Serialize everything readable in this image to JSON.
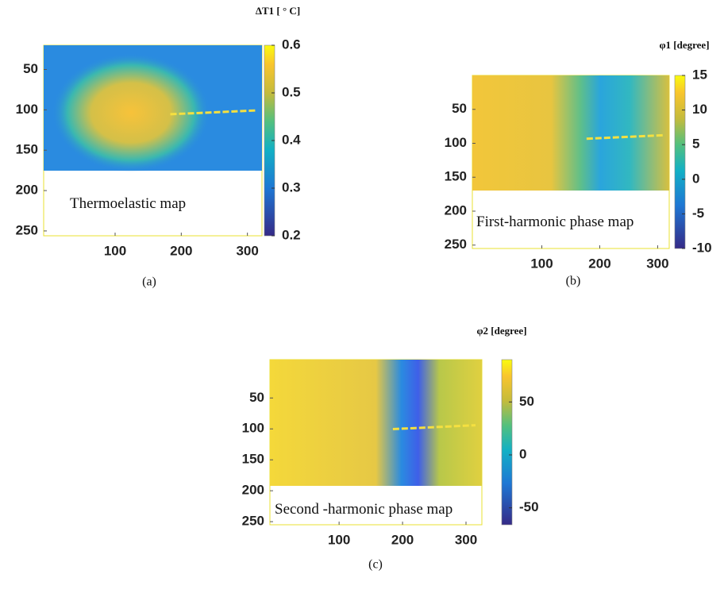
{
  "chart_data": [
    {
      "type": "heatmap",
      "title": "ΔT1 [ ° C]",
      "annotation": "Thermoelastic map",
      "caption": "(a)",
      "xlim": [
        -8,
        322
      ],
      "xticks": [
        100,
        200,
        300
      ],
      "ylim": [
        20,
        256
      ],
      "yticks": [
        50,
        100,
        150,
        200,
        250
      ],
      "clim": [
        0.2,
        0.6
      ],
      "cticks": [
        0.2,
        0.3,
        0.4,
        0.5,
        0.6
      ],
      "colormap": "parula"
    },
    {
      "type": "heatmap",
      "title": "φ1 [degree]",
      "annotation": "First-harmonic phase  map",
      "caption": "(b)",
      "xlim": [
        -20,
        320
      ],
      "xticks": [
        100,
        200,
        300
      ],
      "ylim": [
        0,
        255
      ],
      "yticks": [
        50,
        100,
        150,
        200,
        250
      ],
      "clim": [
        -10,
        15
      ],
      "cticks": [
        -10,
        -5,
        0,
        5,
        10,
        15
      ],
      "colormap": "parula"
    },
    {
      "type": "heatmap",
      "title": "φ2 [degree]",
      "annotation": "Second -harmonic phase map",
      "caption": "(c)",
      "xlim": [
        -9,
        325
      ],
      "xticks": [
        100,
        200,
        300
      ],
      "ylim": [
        -12,
        255
      ],
      "yticks": [
        50,
        100,
        150,
        200,
        250
      ],
      "clim": [
        -66,
        90
      ],
      "cticks": [
        -50,
        0,
        50
      ],
      "colormap": "parula"
    }
  ]
}
